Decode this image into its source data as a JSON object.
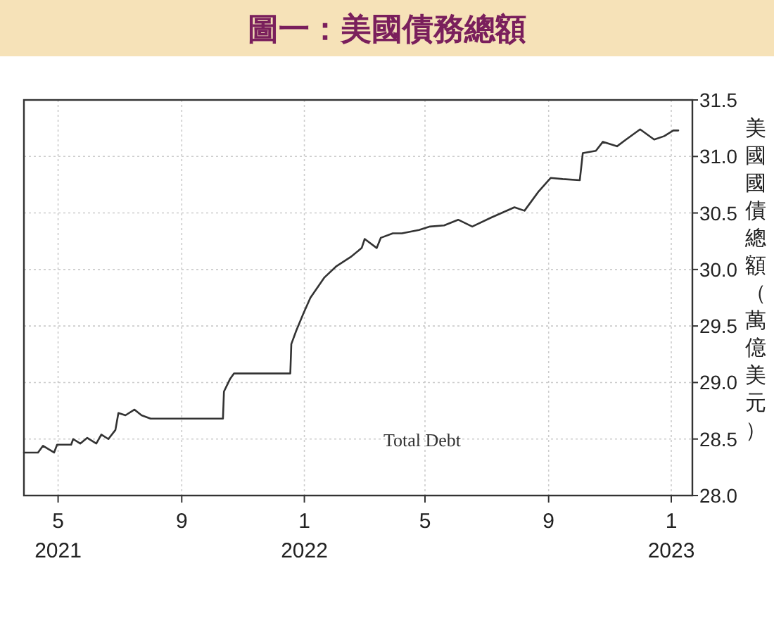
{
  "chart_data": {
    "type": "line",
    "title": "圖一：美國債務總額",
    "ylabel": "美國國債總額（萬億美元）",
    "x": [
      "2021-03-28",
      "2021-04-11",
      "2021-04-16",
      "2021-04-27",
      "2021-04-30",
      "2021-05-14",
      "2021-05-16",
      "2021-05-23",
      "2021-05-30",
      "2021-06-08",
      "2021-06-13",
      "2021-06-20",
      "2021-06-27",
      "2021-06-30",
      "2021-07-07",
      "2021-07-16",
      "2021-07-23",
      "2021-08-01",
      "2021-10-12",
      "2021-10-13",
      "2021-10-19",
      "2021-10-23",
      "2021-12-18",
      "2021-12-19",
      "2021-12-24",
      "2021-12-31",
      "2022-01-07",
      "2022-01-14",
      "2022-01-21",
      "2022-02-02",
      "2022-02-16",
      "2022-02-27",
      "2022-03-02",
      "2022-03-14",
      "2022-03-18",
      "2022-03-30",
      "2022-04-08",
      "2022-04-25",
      "2022-05-06",
      "2022-05-20",
      "2022-06-03",
      "2022-06-17",
      "2022-07-06",
      "2022-07-29",
      "2022-08-08",
      "2022-08-22",
      "2022-09-03",
      "2022-09-15",
      "2022-10-02",
      "2022-10-05",
      "2022-10-18",
      "2022-10-25",
      "2022-11-08",
      "2022-11-17",
      "2022-12-01",
      "2022-12-15",
      "2022-12-25",
      "2023-01-03",
      "2023-01-08"
    ],
    "series": [
      {
        "name": "Total Debt",
        "color": "#333333",
        "values": [
          28.38,
          28.38,
          28.44,
          28.38,
          28.45,
          28.45,
          28.5,
          28.46,
          28.51,
          28.46,
          28.54,
          28.5,
          28.58,
          28.73,
          28.71,
          28.76,
          28.71,
          28.68,
          28.68,
          28.92,
          29.03,
          29.08,
          29.08,
          29.34,
          29.46,
          29.61,
          29.75,
          29.84,
          29.93,
          30.03,
          30.11,
          30.19,
          30.27,
          30.19,
          30.28,
          30.32,
          30.32,
          30.35,
          30.38,
          30.39,
          30.44,
          30.38,
          30.46,
          30.55,
          30.52,
          30.69,
          30.81,
          30.8,
          30.79,
          31.03,
          31.05,
          31.13,
          31.09,
          31.15,
          31.24,
          31.15,
          31.18,
          31.23,
          31.23
        ]
      }
    ],
    "xlim": [
      "2021-03-28",
      "2023-01-22"
    ],
    "ylim": [
      28,
      31.5
    ],
    "xticks": [
      {
        "value": "2021-05-01",
        "label": "5\n2021"
      },
      {
        "value": "2021-09-01",
        "label": "9"
      },
      {
        "value": "2022-01-01",
        "label": "1\n2022"
      },
      {
        "value": "2022-05-01",
        "label": "5"
      },
      {
        "value": "2022-09-01",
        "label": "9"
      },
      {
        "value": "2023-01-01",
        "label": "1\n2023"
      }
    ],
    "yticks": [
      {
        "value": 28,
        "label": "28.0"
      },
      {
        "value": 28.5,
        "label": "28.5"
      },
      {
        "value": 29,
        "label": "29.0"
      },
      {
        "value": 29.5,
        "label": "29.5"
      },
      {
        "value": 30,
        "label": "30.0"
      },
      {
        "value": 30.5,
        "label": "30.5"
      },
      {
        "value": 31,
        "label": "31.0"
      },
      {
        "value": 31.5,
        "label": "31.5"
      }
    ],
    "grid": true
  }
}
